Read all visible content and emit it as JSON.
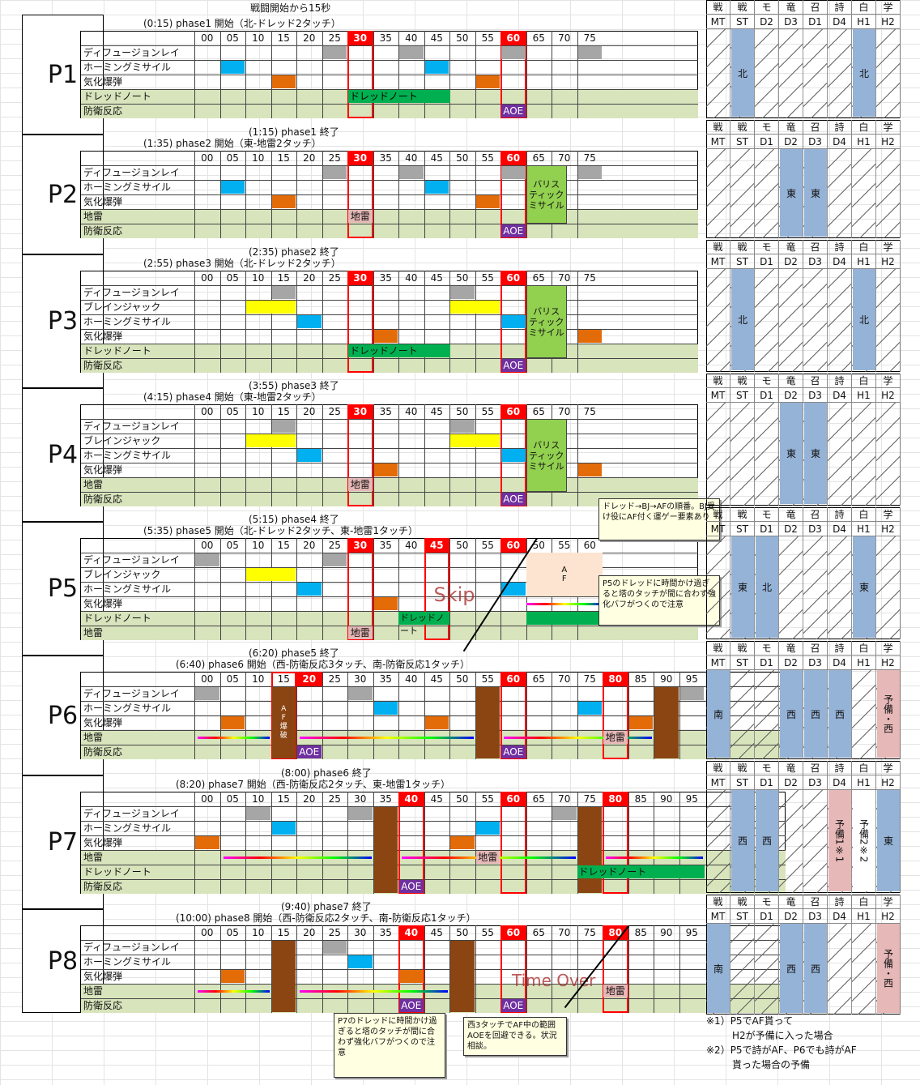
{
  "top_title": "戦闘開始から15秒",
  "times_std": [
    "00",
    "05",
    "10",
    "15",
    "20",
    "25",
    "30",
    "35",
    "40",
    "45",
    "50",
    "55",
    "60",
    "65",
    "70",
    "75"
  ],
  "times_p5": [
    "00",
    "05",
    "10",
    "15",
    "20",
    "25",
    "30",
    "35",
    "40",
    "45",
    "50",
    "55",
    "60",
    "50",
    "55",
    "60"
  ],
  "times_long": [
    "00",
    "05",
    "10",
    "15",
    "20",
    "25",
    "30",
    "35",
    "40",
    "45",
    "50",
    "55",
    "60",
    "65",
    "70",
    "75",
    "80",
    "85",
    "90",
    "95"
  ],
  "phases": [
    {
      "name": "P1",
      "header": "(0:15) phase1 開始（北-ドレッド2タッチ）",
      "end": "(1:15) phase1 終了",
      "rows": [
        "ディフュージョンレイ",
        "ホーミングミサイル",
        "気化爆弾",
        "ドレッドノート",
        "防衛反応"
      ],
      "labels": [
        "ドレッドノート",
        "AOE"
      ]
    },
    {
      "name": "P2",
      "header": "(1:35) phase2 開始（東-地雷2タッチ）",
      "end": "(2:35) phase2 終了",
      "rows": [
        "ディフュージョンレイ",
        "ホーミングミサイル",
        "気化爆弾",
        "地雷",
        "防衛反応"
      ],
      "labels": [
        "地雷",
        "AOE",
        "バリス",
        "ティック",
        "ミサイル"
      ]
    },
    {
      "name": "P3",
      "header": "(2:55) phase3 開始（北-ドレッド2タッチ）",
      "end": "(3:55) phase3 終了",
      "rows": [
        "ディフュージョンレイ",
        "ブレインジャック",
        "ホーミングミサイル",
        "気化爆弾",
        "ドレッドノート",
        "防衛反応"
      ],
      "labels": [
        "ドレッドノート",
        "AOE",
        "バリス",
        "ティック",
        "ミサイル"
      ]
    },
    {
      "name": "P4",
      "header": "(4:15) phase4 開始（東-地雷2タッチ）",
      "end": "(5:15) phase4 終了",
      "rows": [
        "ディフュージョンレイ",
        "ブレインジャック",
        "ホーミングミサイル",
        "気化爆弾",
        "地雷",
        "防衛反応"
      ],
      "labels": [
        "地雷",
        "AOE",
        "バリス",
        "ティック",
        "ミサイル"
      ]
    },
    {
      "name": "P5",
      "header": "(5:35) phase5 開始（北-ドレッド2タッチ、東-地雷1タッチ）",
      "end": "(6:20) phase5 終了",
      "rows": [
        "ディフュージョンレイ",
        "ブレインジャック",
        "ホーミングミサイル",
        "気化爆弾",
        "ドレッドノート",
        "地雷"
      ],
      "labels": [
        "ドレッドノート",
        "地雷",
        "Skip",
        "A",
        "F"
      ]
    },
    {
      "name": "P6",
      "header": "(6:40) phase6 開始（西-防衛反応3タッチ、南-防衛反応1タッチ）",
      "end": "(8:00) phase6 終了",
      "rows": [
        "ディフュージョンレイ",
        "ホーミングミサイル",
        "気化爆弾",
        "地雷",
        "防衛反応"
      ],
      "labels": [
        "AOE",
        "AOE",
        "AOE",
        "地雷",
        "A",
        "F",
        "爆",
        "破"
      ]
    },
    {
      "name": "P7",
      "header": "(8:20) phase7 開始（西-防衛反応2タッチ、東-地雷1タッチ）",
      "end": "(9:40) phase7 終了",
      "rows": [
        "ディフュージョンレイ",
        "ホーミングミサイル",
        "気化爆弾",
        "地雷",
        "ドレッドノート",
        "防衛反応"
      ],
      "labels": [
        "地雷",
        "AOE",
        "ドレッドノート"
      ]
    },
    {
      "name": "P8",
      "header": "(10:00) phase8 開始（西-防衛反応2タッチ、南-防衛反応1タッチ）",
      "end": "",
      "rows": [
        "ディフュージョンレイ",
        "ホーミングミサイル",
        "気化爆弾",
        "地雷",
        "防衛反応"
      ],
      "labels": [
        "AOE",
        "AOE",
        "地雷",
        "Time Over"
      ]
    }
  ],
  "notes": {
    "n1": "ドレッド→BJ→AFの順番。BJ受け役にAF付く運ゲー要素あり",
    "n2": "P5のドレッドに時間かけ過ぎると塔のタッチが間に合わず強化バフがつくので注意",
    "n3": "P7のドレッドに時間かけ過ぎると塔のタッチが間に合わず強化バフがつくので注意",
    "n4": "西3タッチでAF中の範囲AOEを回避できる。状況相談。"
  },
  "roles": {
    "jobs": [
      "戦",
      "戦",
      "モ",
      "竜",
      "召",
      "詩",
      "白",
      "学"
    ],
    "sections": [
      {
        "pos": [
          "MT",
          "ST",
          "D2",
          "D3",
          "D1",
          "D4",
          "H1",
          "H2"
        ],
        "blocks": [
          "北",
          "北"
        ]
      },
      {
        "pos": [
          "MT",
          "ST",
          "D1",
          "D2",
          "D3",
          "D4",
          "H1",
          "H2"
        ],
        "blocks": [
          "東",
          "東"
        ]
      },
      {
        "pos": [
          "MT",
          "ST",
          "D1",
          "D2",
          "D3",
          "D4",
          "H1",
          "H2"
        ],
        "blocks": [
          "北",
          "北"
        ]
      },
      {
        "pos": [
          "MT",
          "ST",
          "D1",
          "D2",
          "D3",
          "D4",
          "H1",
          "H2"
        ],
        "blocks": [
          "東",
          "東"
        ]
      },
      {
        "pos": [
          "MT",
          "ST",
          "D1",
          "D2",
          "D3",
          "D4",
          "H1",
          "H2"
        ],
        "blocks": [
          "東",
          "北",
          "東"
        ]
      },
      {
        "pos": [
          "MT",
          "ST",
          "D1",
          "D2",
          "D3",
          "D4",
          "H1",
          "H2"
        ],
        "blocks": [
          "南",
          "西",
          "西",
          "西"
        ],
        "reserve": "予備・西"
      },
      {
        "pos": [
          "MT",
          "ST",
          "D1",
          "D2",
          "D3",
          "D4",
          "H1",
          "H2"
        ],
        "blocks": [
          "西",
          "西",
          "東"
        ],
        "reserve": "予備1※1",
        "reserve2": "予備2※2"
      },
      {
        "pos": [
          "MT",
          "ST",
          "D1",
          "D2",
          "D3",
          "D4",
          "H1",
          "H2"
        ],
        "blocks": [
          "南",
          "西",
          "西"
        ],
        "reserve": "予備・西"
      }
    ]
  },
  "footnotes": [
    "※1）P5でAF貰って",
    "H2が予備に入った場合",
    "※2）P5で詩がAF、P6でも詩がAF",
    "貰った場合の予備"
  ]
}
